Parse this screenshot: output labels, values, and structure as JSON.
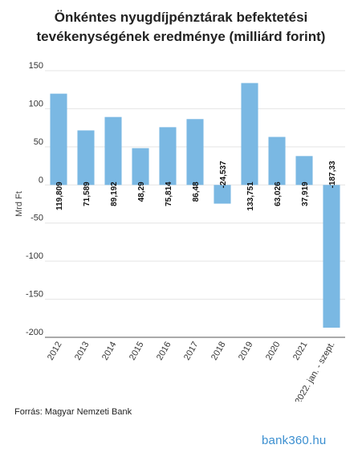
{
  "chart_data": {
    "type": "bar",
    "title": "Önkéntes nyugdíjpénztárak befektetési tevékenységének eredménye (milliárd forint)",
    "ylabel": "Mrd Ft",
    "xlabel": "",
    "ylim": [
      -200,
      150
    ],
    "yticks": [
      150,
      100,
      50,
      0,
      -50,
      -100,
      -150,
      -200
    ],
    "grid": true,
    "legend": "none",
    "bar_color": "#7ab8e3",
    "categories": [
      "2012",
      "2013",
      "2014",
      "2015",
      "2016",
      "2017",
      "2018",
      "2019",
      "2020",
      "2021",
      "2022. jan. - szept."
    ],
    "values": [
      119.809,
      71.589,
      89.192,
      48.29,
      75.814,
      86.48,
      -24.537,
      133.751,
      63.026,
      37.919,
      -187.33
    ],
    "labels": [
      "119,809",
      "71,589",
      "89,192",
      "48,29",
      "75,814",
      "86,48",
      "-24,537",
      "133,751",
      "63,026",
      "37,919",
      "-187,33"
    ]
  },
  "source": "Forrás: Magyar Nemzeti Bank",
  "brand": {
    "text": "bank360.hu",
    "color": "#3b8fd0"
  }
}
